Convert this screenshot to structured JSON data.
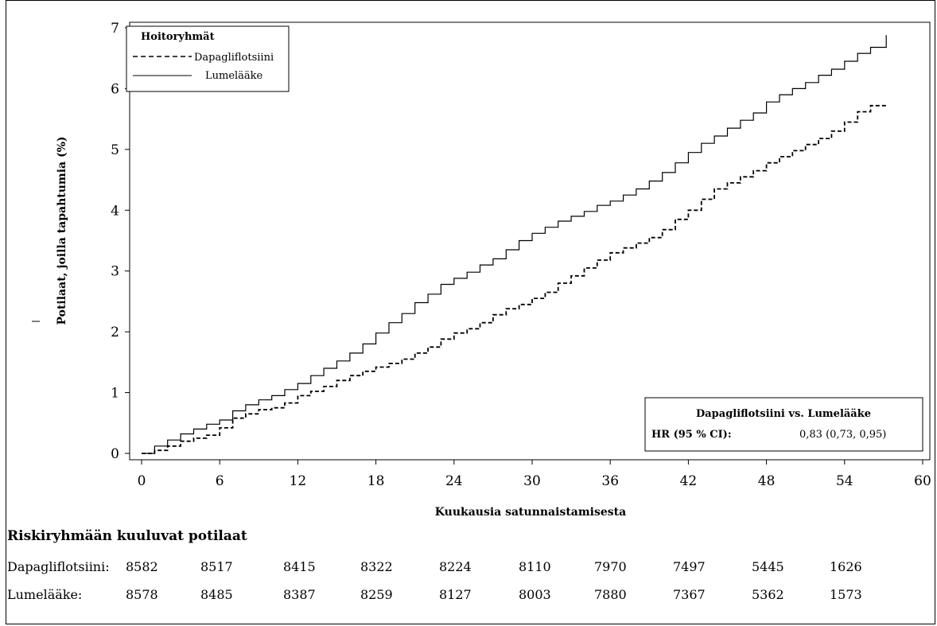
{
  "chart_data": {
    "type": "line",
    "title": "",
    "xlabel": "Kuukausia satunnaistamisesta",
    "ylabel": "Potilaat, joilla tapahtumia (%)",
    "xlim": [
      0,
      60
    ],
    "ylim": [
      0,
      7
    ],
    "xticks": [
      "0",
      "6",
      "12",
      "18",
      "24",
      "30",
      "36",
      "42",
      "48",
      "54",
      "60"
    ],
    "yticks": [
      "0",
      "1",
      "2",
      "3",
      "4",
      "5",
      "6",
      "7"
    ],
    "grid": false,
    "legend": {
      "title": "Hoitoryhmät",
      "position": "top-left",
      "entries": [
        "Dapagliflotsiini",
        "Lumelääke"
      ]
    },
    "series": [
      {
        "name": "Dapagliflotsiini",
        "style": "dashed",
        "x": [
          0,
          1,
          2,
          3,
          4,
          5,
          6,
          7,
          8,
          9,
          10,
          11,
          12,
          13,
          14,
          15,
          16,
          17,
          18,
          19,
          20,
          21,
          22,
          23,
          24,
          25,
          26,
          27,
          28,
          29,
          30,
          31,
          32,
          33,
          34,
          35,
          36,
          37,
          38,
          39,
          40,
          41,
          42,
          43,
          44,
          45,
          46,
          47,
          48,
          49,
          50,
          51,
          52,
          53,
          54,
          55,
          56,
          57.2
        ],
        "y": [
          0,
          0.05,
          0.12,
          0.2,
          0.25,
          0.3,
          0.42,
          0.58,
          0.65,
          0.72,
          0.75,
          0.83,
          0.95,
          1.02,
          1.1,
          1.2,
          1.28,
          1.35,
          1.42,
          1.48,
          1.55,
          1.65,
          1.75,
          1.88,
          1.98,
          2.05,
          2.15,
          2.28,
          2.38,
          2.45,
          2.55,
          2.65,
          2.8,
          2.92,
          3.05,
          3.18,
          3.3,
          3.38,
          3.46,
          3.55,
          3.68,
          3.85,
          4.0,
          4.18,
          4.35,
          4.45,
          4.55,
          4.65,
          4.78,
          4.88,
          4.98,
          5.08,
          5.18,
          5.3,
          5.45,
          5.62,
          5.72,
          5.72
        ]
      },
      {
        "name": "Lumelääke",
        "style": "solid",
        "x": [
          0,
          1,
          2,
          3,
          4,
          5,
          6,
          7,
          8,
          9,
          10,
          11,
          12,
          13,
          14,
          15,
          16,
          17,
          18,
          19,
          20,
          21,
          22,
          23,
          24,
          25,
          26,
          27,
          28,
          29,
          30,
          31,
          32,
          33,
          34,
          35,
          36,
          37,
          38,
          39,
          40,
          41,
          42,
          43,
          44,
          45,
          46,
          47,
          48,
          49,
          50,
          51,
          52,
          53,
          54,
          55,
          56,
          57,
          57.2
        ],
        "y": [
          0,
          0.12,
          0.22,
          0.32,
          0.4,
          0.48,
          0.55,
          0.7,
          0.8,
          0.88,
          0.95,
          1.05,
          1.15,
          1.28,
          1.4,
          1.52,
          1.65,
          1.8,
          1.98,
          2.15,
          2.3,
          2.48,
          2.62,
          2.78,
          2.88,
          2.98,
          3.1,
          3.2,
          3.35,
          3.5,
          3.62,
          3.72,
          3.82,
          3.9,
          3.98,
          4.08,
          4.15,
          4.25,
          4.35,
          4.48,
          4.62,
          4.78,
          4.95,
          5.1,
          5.22,
          5.35,
          5.48,
          5.6,
          5.78,
          5.9,
          6.0,
          6.1,
          6.22,
          6.32,
          6.45,
          6.58,
          6.68,
          6.68,
          6.88
        ]
      }
    ],
    "hr_box": {
      "title": "Dapagliflotsiini vs. Lumelääke",
      "label": "HR (95 % CI):",
      "value": "0,83 (0,73, 0,95)"
    },
    "colors": {
      "line": "#000000",
      "background": "#ffffff"
    }
  },
  "risk_table": {
    "title": "Riskiryhmään kuuluvat potilaat",
    "rows": [
      {
        "label": "Dapagliflotsiini:",
        "values": [
          "8582",
          "8517",
          "8415",
          "8322",
          "8224",
          "8110",
          "7970",
          "7497",
          "5445",
          "1626"
        ]
      },
      {
        "label": "Lumelääke:",
        "values": [
          "8578",
          "8485",
          "8387",
          "8259",
          "8127",
          "8003",
          "7880",
          "7367",
          "5362",
          "1573"
        ]
      }
    ]
  }
}
